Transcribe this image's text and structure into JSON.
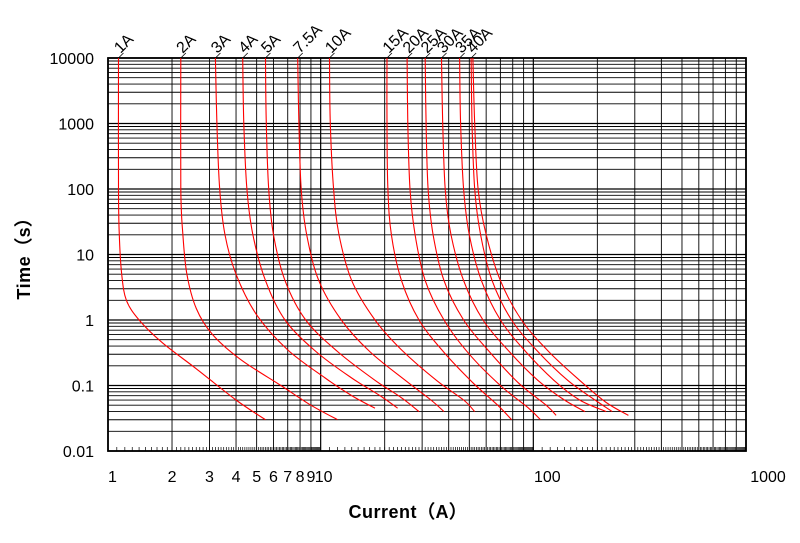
{
  "chart_data": {
    "type": "line",
    "title": "",
    "xlabel": "Current（A）",
    "ylabel": "Time（s）",
    "xscale": "log",
    "yscale": "log",
    "xlim": [
      1,
      1000
    ],
    "ylim": [
      0.01,
      10000
    ],
    "grid": true,
    "line_color": "#ff0000",
    "x_tick_labels": [
      {
        "value": 1,
        "label": "1"
      },
      {
        "value": 2,
        "label": "2"
      },
      {
        "value": 3,
        "label": "3"
      },
      {
        "value": 4,
        "label": "4"
      },
      {
        "value": 5,
        "label": "5"
      },
      {
        "value": 6,
        "label": "6"
      },
      {
        "value": 7,
        "label": "7"
      },
      {
        "value": 8,
        "label": "8"
      },
      {
        "value": 9,
        "label": "9"
      },
      {
        "value": 10,
        "label": "10"
      },
      {
        "value": 100,
        "label": "100"
      },
      {
        "value": 1000,
        "label": "1000"
      }
    ],
    "y_tick_labels": [
      {
        "value": 0.01,
        "label": "0.01"
      },
      {
        "value": 0.1,
        "label": "0.1"
      },
      {
        "value": 1,
        "label": "1"
      },
      {
        "value": 10,
        "label": "10"
      },
      {
        "value": 100,
        "label": "100"
      },
      {
        "value": 1000,
        "label": "1000"
      },
      {
        "value": 10000,
        "label": "10000"
      }
    ],
    "series": [
      {
        "name": "1A",
        "x": [
          1.12,
          1.12,
          1.13,
          1.16,
          1.22,
          1.4,
          1.8,
          2.6,
          4.0,
          5.5
        ],
        "y": [
          10000,
          100,
          20,
          5,
          2,
          1,
          0.45,
          0.18,
          0.06,
          0.03
        ]
      },
      {
        "name": "2A",
        "x": [
          2.2,
          2.2,
          2.25,
          2.35,
          2.6,
          3.1,
          4.2,
          6.5,
          9.0,
          12.0
        ],
        "y": [
          10000,
          100,
          20,
          5,
          1.5,
          0.6,
          0.25,
          0.1,
          0.05,
          0.03
        ]
      },
      {
        "name": "3A",
        "x": [
          3.2,
          3.25,
          3.35,
          3.55,
          4.0,
          5.0,
          7.0,
          10.5,
          14.0,
          18.0
        ],
        "y": [
          10000,
          1000,
          100,
          20,
          5,
          1.2,
          0.35,
          0.13,
          0.07,
          0.045
        ]
      },
      {
        "name": "4A",
        "x": [
          4.3,
          4.35,
          4.5,
          4.8,
          5.5,
          6.8,
          9.5,
          14.0,
          19.0,
          23.0
        ],
        "y": [
          10000,
          1000,
          100,
          20,
          4,
          1.0,
          0.33,
          0.13,
          0.07,
          0.045
        ]
      },
      {
        "name": "5A",
        "x": [
          5.5,
          5.55,
          5.7,
          6.0,
          6.8,
          8.5,
          12.0,
          18.0,
          24.0,
          29.0
        ],
        "y": [
          10000,
          1000,
          100,
          20,
          4,
          1.0,
          0.33,
          0.12,
          0.065,
          0.04
        ]
      },
      {
        "name": "7.5A",
        "x": [
          7.8,
          7.9,
          8.1,
          8.6,
          9.8,
          12.5,
          17.0,
          25.0,
          33.0,
          38.0
        ],
        "y": [
          10000,
          1000,
          100,
          20,
          4,
          1.0,
          0.33,
          0.12,
          0.06,
          0.04
        ]
      },
      {
        "name": "10A",
        "x": [
          11.0,
          11.1,
          11.5,
          12.2,
          14.0,
          18.0,
          24.0,
          35.0,
          47.0,
          53.0
        ],
        "y": [
          10000,
          1000,
          100,
          20,
          4,
          1.0,
          0.35,
          0.12,
          0.06,
          0.04
        ]
      },
      {
        "name": "15A",
        "x": [
          20.5,
          20.5,
          20.7,
          21.5,
          24.0,
          29.0,
          38.0,
          52.0,
          68.0,
          79.0
        ],
        "y": [
          10000,
          1000,
          100,
          20,
          4,
          1.0,
          0.32,
          0.11,
          0.05,
          0.03
        ]
      },
      {
        "name": "20A",
        "x": [
          25.5,
          25.7,
          26.3,
          27.8,
          31.0,
          38.0,
          50.0,
          70.0,
          95.0,
          108.0
        ],
        "y": [
          10000,
          1000,
          100,
          20,
          4,
          1.0,
          0.3,
          0.1,
          0.045,
          0.03
        ]
      },
      {
        "name": "25A",
        "x": [
          31.0,
          31.3,
          32.0,
          33.8,
          38.0,
          47.0,
          62.0,
          85.0,
          115.0,
          128.0
        ],
        "y": [
          10000,
          1000,
          100,
          20,
          4,
          1.0,
          0.33,
          0.11,
          0.05,
          0.035
        ]
      },
      {
        "name": "30A",
        "x": [
          37.0,
          37.5,
          38.5,
          41.0,
          47.0,
          58.0,
          77.0,
          105.0,
          140.0,
          175.0
        ],
        "y": [
          10000,
          1000,
          100,
          20,
          4,
          1.0,
          0.33,
          0.12,
          0.06,
          0.04
        ]
      },
      {
        "name": "35A",
        "x": [
          45.0,
          45.5,
          47.0,
          50.0,
          57.0,
          70.0,
          92.0,
          125.0,
          165.0,
          220.0
        ],
        "y": [
          10000,
          1000,
          100,
          20,
          4,
          1.0,
          0.33,
          0.12,
          0.06,
          0.04
        ]
      },
      {
        "name": "40A",
        "x": [
          51.0,
          51.5,
          53.0,
          56.5,
          64.0,
          79.0,
          105.0,
          145.0,
          195.0,
          235.0
        ],
        "y": [
          10000,
          1000,
          100,
          20,
          4,
          1.0,
          0.33,
          0.12,
          0.06,
          0.04
        ]
      },
      {
        "name": "",
        "x": [
          52.0,
          53.0,
          55.0,
          60.0,
          70.0,
          88.0,
          118.0,
          165.0,
          220.0,
          280.0
        ],
        "y": [
          10000,
          1000,
          100,
          20,
          4,
          1.0,
          0.33,
          0.12,
          0.055,
          0.035
        ]
      }
    ],
    "label_anchor_x": [
      1.12,
      2.2,
      3.2,
      4.3,
      5.5,
      7.8,
      11.0,
      20.5,
      25.5,
      31.0,
      37.0,
      45.0,
      51.0
    ]
  }
}
